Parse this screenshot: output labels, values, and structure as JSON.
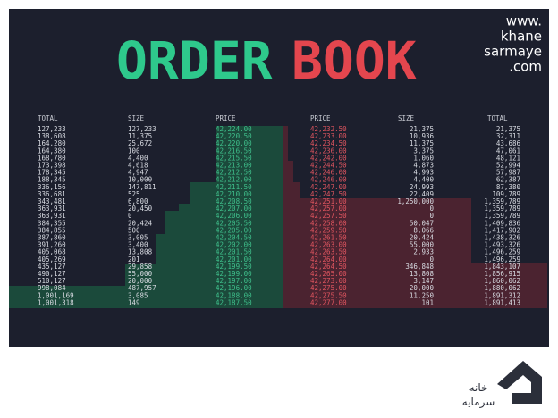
{
  "header": {
    "title_left": "ORDER",
    "title_right": "BOOK",
    "site": [
      "www.",
      "khane",
      "sarmaye",
      ".com"
    ],
    "logo_text": [
      "خانه",
      "سرمایه"
    ]
  },
  "bids": {
    "columns": [
      "TOTAL",
      "SIZE",
      "PRICE"
    ],
    "rows": [
      [
        "127,233",
        "127,233",
        "42,224.00"
      ],
      [
        "138,608",
        "11,375",
        "42,220.50"
      ],
      [
        "164,280",
        "25,672",
        "42,220.00"
      ],
      [
        "164,380",
        "100",
        "42,216.50"
      ],
      [
        "168,780",
        "4,400",
        "42,215.50"
      ],
      [
        "173,398",
        "4,618",
        "42,213.00"
      ],
      [
        "178,345",
        "4,947",
        "42,212.50"
      ],
      [
        "188,345",
        "10,000",
        "42,212.00"
      ],
      [
        "336,156",
        "147,811",
        "42,211.50"
      ],
      [
        "336,681",
        "525",
        "42,210.00"
      ],
      [
        "343,481",
        "6,800",
        "42,208.50"
      ],
      [
        "363,931",
        "20,450",
        "42,207.00"
      ],
      [
        "363,931",
        "0",
        "42,206.00"
      ],
      [
        "384,355",
        "20,424",
        "42,205.50"
      ],
      [
        "384,855",
        "500",
        "42,205.00"
      ],
      [
        "387,860",
        "3,005",
        "42,204.50"
      ],
      [
        "391,260",
        "3,400",
        "42,202.00"
      ],
      [
        "405,068",
        "13,808",
        "42,201.50"
      ],
      [
        "405,269",
        "201",
        "42,201.00"
      ],
      [
        "435,127",
        "29,858",
        "42,199.50"
      ],
      [
        "490,127",
        "55,000",
        "42,199.00"
      ],
      [
        "510,127",
        "20,000",
        "42,197.00"
      ],
      [
        "998,084",
        "487,957",
        "42,196.00"
      ],
      [
        "1,001,169",
        "3,085",
        "42,188.00"
      ],
      [
        "1,001,318",
        "149",
        "42,187.50"
      ]
    ]
  },
  "asks": {
    "columns": [
      "PRICE",
      "SIZE",
      "TOTAL"
    ],
    "rows": [
      [
        "42,232.50",
        "21,375",
        "21,375"
      ],
      [
        "42,233.00",
        "10,936",
        "32,311"
      ],
      [
        "42,234.50",
        "11,375",
        "43,686"
      ],
      [
        "42,236.00",
        "3,375",
        "47,061"
      ],
      [
        "42,242.00",
        "1,060",
        "48,121"
      ],
      [
        "42,244.50",
        "4,873",
        "52,994"
      ],
      [
        "42,246.00",
        "4,993",
        "57,987"
      ],
      [
        "42,246.00",
        "4,400",
        "62,387"
      ],
      [
        "42,247.00",
        "24,993",
        "87,380"
      ],
      [
        "42,247.50",
        "22,409",
        "109,789"
      ],
      [
        "42,251.00",
        "1,250,000",
        "1,359,789"
      ],
      [
        "42,257.00",
        "0",
        "1,359,789"
      ],
      [
        "42,257.50",
        "0",
        "1,359,789"
      ],
      [
        "42,258.00",
        "50,047",
        "1,409,836"
      ],
      [
        "42,259.50",
        "8,066",
        "1,417,902"
      ],
      [
        "42,261.50",
        "20,424",
        "1,438,326"
      ],
      [
        "42,263.00",
        "55,000",
        "1,493,326"
      ],
      [
        "42,263.50",
        "2,933",
        "1,496,259"
      ],
      [
        "42,264.00",
        "0",
        "1,496,259"
      ],
      [
        "42,264.50",
        "346,848",
        "1,843,107"
      ],
      [
        "42,265.00",
        "13,808",
        "1,856,915"
      ],
      [
        "42,273.00",
        "3,147",
        "1,860,062"
      ],
      [
        "42,275.00",
        "20,000",
        "1,880,062"
      ],
      [
        "42,275.50",
        "11,250",
        "1,891,312"
      ],
      [
        "42,277.00",
        "101",
        "1,891,413"
      ]
    ]
  }
}
